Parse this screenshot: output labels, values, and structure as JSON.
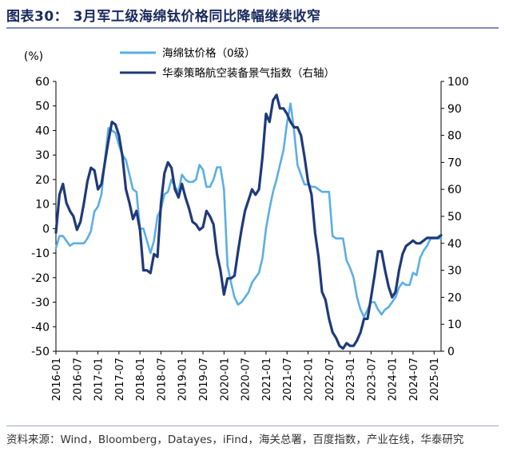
{
  "figure": {
    "title": "图表30： 3月军工级海绵钛价格同比降幅继续收窄",
    "source": "资料来源：Wind，Bloomberg，Datayes，iFind，海关总署，百度指数，产业在线，华泰研究"
  },
  "chart_data": {
    "type": "line",
    "y_unit_label": "(%)",
    "legend_position": "top-center",
    "grid": false,
    "left_axis": {
      "ylim": [
        -50,
        60
      ],
      "ticks": [
        "60",
        "50",
        "40",
        "30",
        "20",
        "10",
        "0",
        "-10",
        "-20",
        "-30",
        "-40",
        "-50"
      ]
    },
    "right_axis": {
      "ylim": [
        0,
        100
      ],
      "ticks": [
        "100",
        "90",
        "80",
        "70",
        "60",
        "50",
        "40",
        "30",
        "20",
        "10",
        "0"
      ]
    },
    "x_axis": {
      "range": [
        "2016-01",
        "2025-03"
      ],
      "tick_labels": [
        "2016-01",
        "2016-07",
        "2017-01",
        "2017-07",
        "2018-01",
        "2018-07",
        "2019-01",
        "2019-07",
        "2020-01",
        "2020-07",
        "2021-01",
        "2021-07",
        "2022-01",
        "2022-07",
        "2023-01",
        "2023-07",
        "2024-01",
        "2024-07",
        "2025-01"
      ]
    },
    "series": [
      {
        "name": "海绵钛价格（0级）",
        "axis": "left",
        "color": "#5aaee6",
        "points": [
          [
            "2016-01",
            -8
          ],
          [
            "2016-02",
            -3
          ],
          [
            "2016-03",
            -3
          ],
          [
            "2016-04",
            -5
          ],
          [
            "2016-05",
            -7
          ],
          [
            "2016-06",
            -6
          ],
          [
            "2016-07",
            -6
          ],
          [
            "2016-08",
            -6
          ],
          [
            "2016-09",
            -6
          ],
          [
            "2016-10",
            -4
          ],
          [
            "2016-11",
            -1
          ],
          [
            "2016-12",
            7
          ],
          [
            "2017-01",
            9
          ],
          [
            "2017-02",
            14
          ],
          [
            "2017-03",
            28
          ],
          [
            "2017-04",
            41
          ],
          [
            "2017-05",
            40
          ],
          [
            "2017-06",
            39
          ],
          [
            "2017-07",
            34
          ],
          [
            "2017-08",
            30
          ],
          [
            "2017-09",
            28
          ],
          [
            "2017-10",
            22
          ],
          [
            "2017-11",
            16
          ],
          [
            "2017-12",
            15
          ],
          [
            "2018-01",
            0
          ],
          [
            "2018-02",
            0
          ],
          [
            "2018-03",
            -5
          ],
          [
            "2018-04",
            -10
          ],
          [
            "2018-05",
            -5
          ],
          [
            "2018-06",
            5
          ],
          [
            "2018-07",
            8
          ],
          [
            "2018-08",
            14
          ],
          [
            "2018-09",
            15
          ],
          [
            "2018-10",
            20
          ],
          [
            "2018-11",
            17
          ],
          [
            "2018-12",
            15
          ],
          [
            "2019-01",
            22
          ],
          [
            "2019-02",
            20
          ],
          [
            "2019-03",
            19
          ],
          [
            "2019-04",
            19
          ],
          [
            "2019-05",
            20
          ],
          [
            "2019-06",
            26
          ],
          [
            "2019-07",
            24
          ],
          [
            "2019-08",
            17
          ],
          [
            "2019-09",
            17
          ],
          [
            "2019-10",
            20
          ],
          [
            "2019-11",
            25
          ],
          [
            "2019-12",
            25
          ],
          [
            "2020-01",
            16
          ],
          [
            "2020-02",
            -15
          ],
          [
            "2020-03",
            -22
          ],
          [
            "2020-04",
            -28
          ],
          [
            "2020-05",
            -31
          ],
          [
            "2020-06",
            -30
          ],
          [
            "2020-07",
            -28
          ],
          [
            "2020-08",
            -26
          ],
          [
            "2020-09",
            -22
          ],
          [
            "2020-10",
            -20
          ],
          [
            "2020-11",
            -18
          ],
          [
            "2020-12",
            -12
          ],
          [
            "2021-01",
            0
          ],
          [
            "2021-02",
            8
          ],
          [
            "2021-03",
            15
          ],
          [
            "2021-04",
            20
          ],
          [
            "2021-05",
            26
          ],
          [
            "2021-06",
            32
          ],
          [
            "2021-07",
            43
          ],
          [
            "2021-08",
            51
          ],
          [
            "2021-09",
            40
          ],
          [
            "2021-10",
            26
          ],
          [
            "2021-11",
            22
          ],
          [
            "2021-12",
            18
          ],
          [
            "2022-01",
            18
          ],
          [
            "2022-02",
            17
          ],
          [
            "2022-03",
            17
          ],
          [
            "2022-04",
            16
          ],
          [
            "2022-05",
            15
          ],
          [
            "2022-06",
            15
          ],
          [
            "2022-07",
            15
          ],
          [
            "2022-08",
            -3
          ],
          [
            "2022-09",
            -4
          ],
          [
            "2022-10",
            -4
          ],
          [
            "2022-11",
            -4
          ],
          [
            "2022-12",
            -13
          ],
          [
            "2023-01",
            -16
          ],
          [
            "2023-02",
            -20
          ],
          [
            "2023-03",
            -28
          ],
          [
            "2023-04",
            -33
          ],
          [
            "2023-05",
            -36
          ],
          [
            "2023-06",
            -33
          ],
          [
            "2023-07",
            -30
          ],
          [
            "2023-08",
            -30
          ],
          [
            "2023-09",
            -33
          ],
          [
            "2023-10",
            -35
          ],
          [
            "2023-11",
            -33
          ],
          [
            "2023-12",
            -32
          ],
          [
            "2024-01",
            -30
          ],
          [
            "2024-02",
            -28
          ],
          [
            "2024-03",
            -24
          ],
          [
            "2024-04",
            -22
          ],
          [
            "2024-05",
            -23
          ],
          [
            "2024-06",
            -23
          ],
          [
            "2024-07",
            -18
          ],
          [
            "2024-08",
            -19
          ],
          [
            "2024-09",
            -12
          ],
          [
            "2024-10",
            -9
          ],
          [
            "2024-11",
            -7
          ],
          [
            "2024-12",
            -4
          ],
          [
            "2025-01",
            -4
          ],
          [
            "2025-02",
            -4
          ],
          [
            "2025-03",
            -4
          ]
        ]
      },
      {
        "name": "华泰策略航空装备景气指数（右轴）",
        "axis": "right",
        "color": "#1f3a7a",
        "points": [
          [
            "2016-01",
            44
          ],
          [
            "2016-02",
            58
          ],
          [
            "2016-03",
            62
          ],
          [
            "2016-04",
            55
          ],
          [
            "2016-05",
            52
          ],
          [
            "2016-06",
            50
          ],
          [
            "2016-07",
            45
          ],
          [
            "2016-08",
            48
          ],
          [
            "2016-09",
            55
          ],
          [
            "2016-10",
            63
          ],
          [
            "2016-11",
            68
          ],
          [
            "2016-12",
            67
          ],
          [
            "2017-01",
            60
          ],
          [
            "2017-02",
            62
          ],
          [
            "2017-03",
            70
          ],
          [
            "2017-04",
            78
          ],
          [
            "2017-05",
            85
          ],
          [
            "2017-06",
            84
          ],
          [
            "2017-07",
            80
          ],
          [
            "2017-08",
            72
          ],
          [
            "2017-09",
            60
          ],
          [
            "2017-10",
            55
          ],
          [
            "2017-11",
            49
          ],
          [
            "2017-12",
            52
          ],
          [
            "2018-01",
            45
          ],
          [
            "2018-02",
            30
          ],
          [
            "2018-03",
            30
          ],
          [
            "2018-04",
            29
          ],
          [
            "2018-05",
            36
          ],
          [
            "2018-06",
            35
          ],
          [
            "2018-07",
            55
          ],
          [
            "2018-08",
            66
          ],
          [
            "2018-09",
            70
          ],
          [
            "2018-10",
            68
          ],
          [
            "2018-11",
            60
          ],
          [
            "2018-12",
            57
          ],
          [
            "2019-01",
            62
          ],
          [
            "2019-02",
            57
          ],
          [
            "2019-03",
            53
          ],
          [
            "2019-04",
            48
          ],
          [
            "2019-05",
            47
          ],
          [
            "2019-06",
            45
          ],
          [
            "2019-07",
            46
          ],
          [
            "2019-08",
            52
          ],
          [
            "2019-09",
            50
          ],
          [
            "2019-10",
            47
          ],
          [
            "2019-11",
            36
          ],
          [
            "2019-12",
            30
          ],
          [
            "2020-01",
            21
          ],
          [
            "2020-02",
            27
          ],
          [
            "2020-03",
            27
          ],
          [
            "2020-04",
            28
          ],
          [
            "2020-05",
            37
          ],
          [
            "2020-06",
            45
          ],
          [
            "2020-07",
            52
          ],
          [
            "2020-08",
            56
          ],
          [
            "2020-09",
            60
          ],
          [
            "2020-10",
            58
          ],
          [
            "2020-11",
            60
          ],
          [
            "2020-12",
            72
          ],
          [
            "2021-01",
            88
          ],
          [
            "2021-02",
            85
          ],
          [
            "2021-03",
            93
          ],
          [
            "2021-04",
            95
          ],
          [
            "2021-05",
            90
          ],
          [
            "2021-06",
            90
          ],
          [
            "2021-07",
            88
          ],
          [
            "2021-08",
            85
          ],
          [
            "2021-09",
            83
          ],
          [
            "2021-10",
            83
          ],
          [
            "2021-11",
            80
          ],
          [
            "2021-12",
            72
          ],
          [
            "2022-01",
            63
          ],
          [
            "2022-02",
            58
          ],
          [
            "2022-03",
            44
          ],
          [
            "2022-04",
            35
          ],
          [
            "2022-05",
            22
          ],
          [
            "2022-06",
            19
          ],
          [
            "2022-07",
            12
          ],
          [
            "2022-08",
            7
          ],
          [
            "2022-09",
            5
          ],
          [
            "2022-10",
            2
          ],
          [
            "2022-11",
            1
          ],
          [
            "2022-12",
            3
          ],
          [
            "2023-01",
            2
          ],
          [
            "2023-02",
            2
          ],
          [
            "2023-03",
            4
          ],
          [
            "2023-04",
            7
          ],
          [
            "2023-05",
            12
          ],
          [
            "2023-06",
            12
          ],
          [
            "2023-07",
            20
          ],
          [
            "2023-08",
            28
          ],
          [
            "2023-09",
            37
          ],
          [
            "2023-10",
            37
          ],
          [
            "2023-11",
            30
          ],
          [
            "2023-12",
            24
          ],
          [
            "2024-01",
            20
          ],
          [
            "2024-02",
            22
          ],
          [
            "2024-03",
            30
          ],
          [
            "2024-04",
            36
          ],
          [
            "2024-05",
            39
          ],
          [
            "2024-06",
            40
          ],
          [
            "2024-07",
            41
          ],
          [
            "2024-08",
            40
          ],
          [
            "2024-09",
            40
          ],
          [
            "2024-10",
            41
          ],
          [
            "2024-11",
            42
          ],
          [
            "2024-12",
            42
          ],
          [
            "2025-01",
            42
          ],
          [
            "2025-02",
            42
          ],
          [
            "2025-03",
            43
          ]
        ]
      }
    ]
  }
}
